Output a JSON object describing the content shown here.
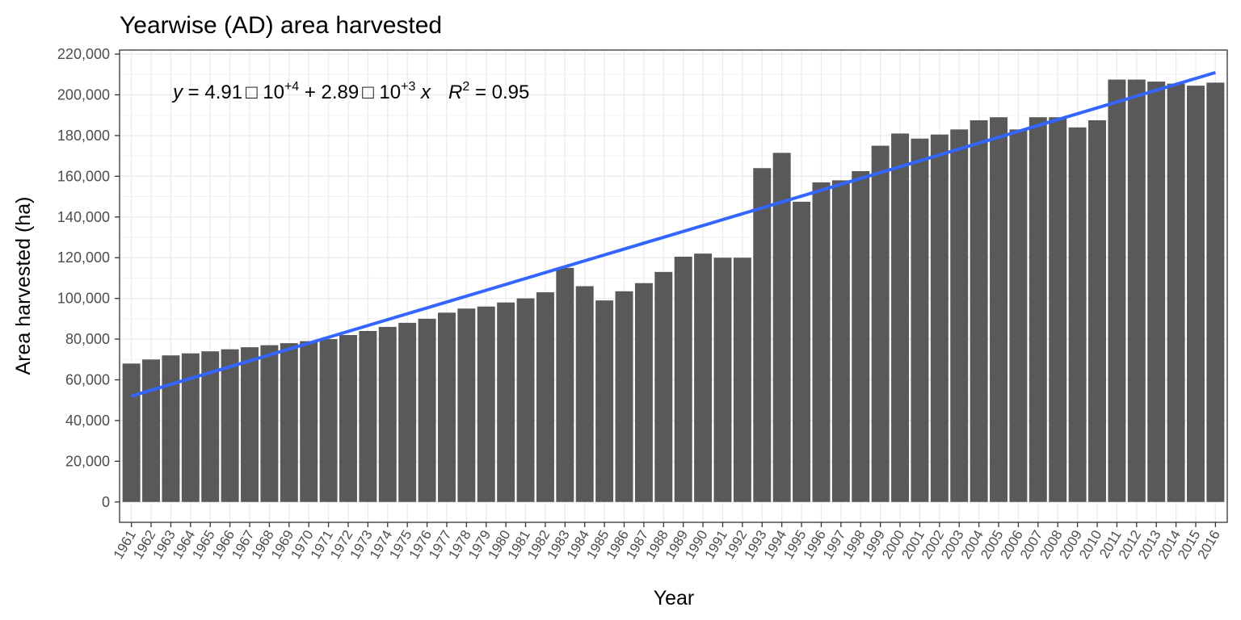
{
  "chart_data": {
    "type": "bar",
    "title": "Yearwise (AD) area harvested",
    "xlabel": "Year",
    "ylabel": "Area harvested (ha)",
    "ylim": [
      -10000,
      222000
    ],
    "yticks": [
      0,
      20000,
      40000,
      60000,
      80000,
      100000,
      120000,
      140000,
      160000,
      180000,
      200000,
      220000
    ],
    "ytick_labels": [
      "0",
      "20,000",
      "40,000",
      "60,000",
      "80,000",
      "100,000",
      "120,000",
      "140,000",
      "160,000",
      "180,000",
      "200,000",
      "220,000"
    ],
    "grid": true,
    "bar_color": "#595959",
    "categories": [
      "1961",
      "1962",
      "1963",
      "1964",
      "1965",
      "1966",
      "1967",
      "1968",
      "1969",
      "1970",
      "1971",
      "1972",
      "1973",
      "1974",
      "1975",
      "1976",
      "1977",
      "1978",
      "1979",
      "1980",
      "1981",
      "1982",
      "1983",
      "1984",
      "1985",
      "1986",
      "1987",
      "1988",
      "1989",
      "1990",
      "1991",
      "1992",
      "1993",
      "1994",
      "1995",
      "1996",
      "1997",
      "1998",
      "1999",
      "2000",
      "2001",
      "2002",
      "2003",
      "2004",
      "2005",
      "2006",
      "2007",
      "2008",
      "2009",
      "2010",
      "2011",
      "2012",
      "2013",
      "2014",
      "2015",
      "2016"
    ],
    "values": [
      68000,
      70000,
      72000,
      73000,
      74000,
      75000,
      76000,
      77000,
      78000,
      79000,
      80000,
      82000,
      84000,
      86000,
      88000,
      90000,
      93000,
      95000,
      96000,
      98000,
      100000,
      103000,
      115000,
      106000,
      99000,
      103500,
      107500,
      113000,
      120500,
      122000,
      120000,
      120000,
      164000,
      171500,
      147500,
      157000,
      158000,
      162500,
      175000,
      181000,
      178500,
      180500,
      183000,
      187500,
      189000,
      183000,
      189000,
      189000,
      184000,
      187500,
      207500,
      207500,
      206500,
      205500,
      204500,
      206000
    ],
    "trend_line": {
      "intercept": 49100,
      "slope": 2890,
      "color": "#3366ff",
      "equation": {
        "y": "y",
        "eq_mid": " = 4.91",
        "times": "□",
        "ten": " 10",
        "exp1": "+4",
        "plus": " + 2.89",
        "exp2": "+3",
        "x": " x",
        "r": "R",
        "r_exp": "2",
        "r_val": " = 0.95"
      }
    }
  }
}
